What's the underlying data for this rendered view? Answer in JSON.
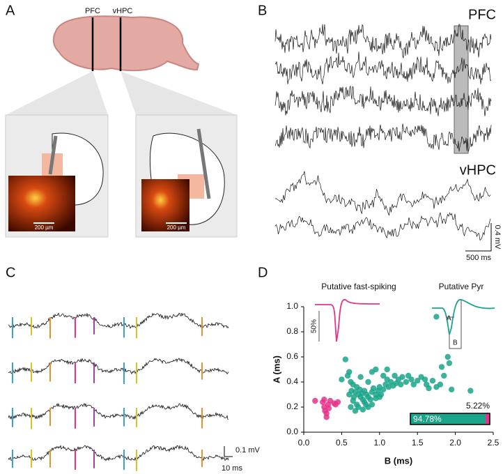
{
  "panels": {
    "a": {
      "label": "A",
      "regions": [
        "PFC",
        "vHPC"
      ],
      "scale_bars": [
        "200 µm",
        "200 µm"
      ]
    },
    "b": {
      "label": "B",
      "traces": [
        "PFC",
        "vHPC"
      ],
      "scale_y": "0.4 mV",
      "scale_x": "500 ms"
    },
    "c": {
      "label": "C",
      "scale_y": "0.1 mV",
      "scale_x": "10 ms"
    },
    "d": {
      "label": "D"
    }
  },
  "chart_data": {
    "type": "scatter",
    "xlabel": "B (ms)",
    "ylabel": "A (ms)",
    "xlim": [
      0,
      2.5
    ],
    "ylim": [
      0,
      1.0
    ],
    "xticks": [
      {
        "value": 0,
        "label": "0.0"
      },
      0.5,
      {
        "value": 1,
        "label": "1.0"
      },
      1.5,
      {
        "value": 2,
        "label": "2.0"
      },
      2.5
    ],
    "yticks": [
      {
        "value": 0,
        "label": "0.0"
      },
      0.2,
      0.4,
      0.6,
      0.8,
      {
        "value": 1,
        "label": "1.0"
      }
    ],
    "series": [
      {
        "name": "Putative Pyr",
        "color": "#1aa58a",
        "x": [
          0.55,
          0.6,
          0.5,
          0.58,
          0.62,
          0.65,
          0.7,
          0.68,
          0.72,
          0.75,
          0.78,
          0.8,
          0.82,
          0.7,
          0.65,
          0.6,
          0.63,
          0.66,
          0.74,
          0.77,
          0.8,
          0.83,
          0.85,
          0.88,
          0.9,
          0.92,
          0.95,
          0.98,
          1.0,
          1.02,
          1.05,
          1.08,
          1.1,
          1.12,
          1.15,
          1.18,
          1.2,
          1.22,
          1.25,
          1.28,
          1.3,
          1.35,
          1.38,
          1.42,
          1.45,
          1.5,
          1.55,
          1.6,
          1.62,
          1.7,
          1.75,
          1.65,
          1.8,
          1.85,
          1.9,
          1.82,
          1.92,
          1.95,
          2.2,
          1.75,
          0.85,
          0.78,
          0.9,
          0.95,
          0.72,
          0.62,
          0.68,
          1.0,
          1.05,
          0.85,
          0.9,
          0.75,
          1.1,
          0.95
        ],
        "y": [
          0.58,
          0.48,
          0.42,
          0.45,
          0.4,
          0.38,
          0.36,
          0.32,
          0.3,
          0.28,
          0.26,
          0.24,
          0.22,
          0.22,
          0.25,
          0.3,
          0.33,
          0.28,
          0.34,
          0.31,
          0.33,
          0.3,
          0.28,
          0.26,
          0.32,
          0.35,
          0.3,
          0.33,
          0.36,
          0.3,
          0.34,
          0.38,
          0.42,
          0.36,
          0.4,
          0.37,
          0.45,
          0.39,
          0.42,
          0.38,
          0.44,
          0.4,
          0.45,
          0.42,
          0.38,
          0.41,
          0.44,
          0.42,
          0.38,
          0.41,
          0.36,
          0.35,
          0.38,
          0.45,
          0.6,
          0.52,
          0.55,
          0.34,
          0.33,
          0.92,
          0.2,
          0.18,
          0.22,
          0.27,
          0.2,
          0.2,
          0.17,
          0.28,
          0.45,
          0.4,
          0.48,
          0.44,
          0.5,
          0.5
        ]
      },
      {
        "name": "Putative fast-spiking",
        "color": "#e6338a",
        "x": [
          0.15,
          0.25,
          0.27,
          0.28,
          0.3,
          0.3,
          0.27,
          0.32,
          0.35,
          0.4,
          0.45,
          0.42,
          0.33
        ],
        "y": [
          0.25,
          0.24,
          0.2,
          0.17,
          0.15,
          0.12,
          0.26,
          0.22,
          0.25,
          0.23,
          0.24,
          0.22,
          0.19
        ]
      }
    ],
    "waveform_labels": {
      "scale": "50%",
      "a": "A",
      "b": "B"
    },
    "proportion": {
      "values": [
        94.78,
        5.22
      ],
      "value_labels": [
        "94.78%",
        "5.22%"
      ]
    }
  }
}
